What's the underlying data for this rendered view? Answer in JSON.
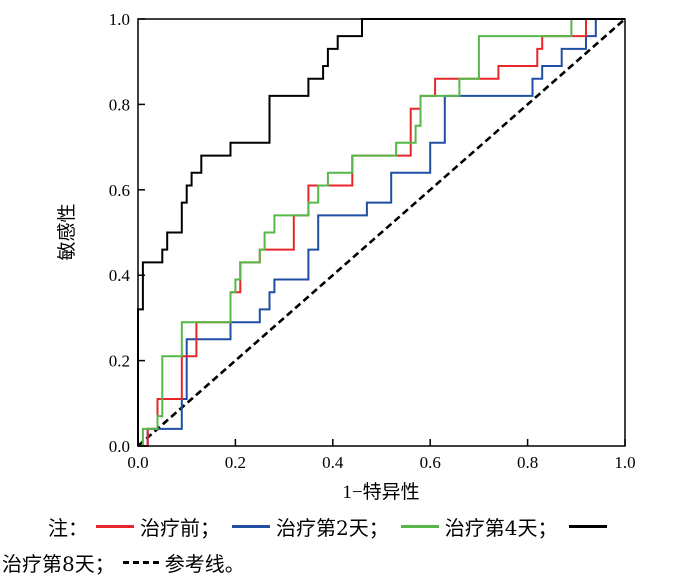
{
  "chart_data": {
    "type": "line",
    "xlabel": "1−特异性",
    "ylabel": "敏感性",
    "xlim": [
      0,
      1
    ],
    "ylim": [
      0,
      1
    ],
    "x_ticks": [
      "0.0",
      "0.2",
      "0.4",
      "0.6",
      "0.8",
      "1.0"
    ],
    "y_ticks": [
      "0.0",
      "0.2",
      "0.4",
      "0.6",
      "0.8",
      "1.0"
    ],
    "grid": false,
    "series": [
      {
        "name": "治疗前",
        "color": "#e8262a",
        "points": [
          [
            0,
            0
          ],
          [
            0.02,
            0
          ],
          [
            0.02,
            0.04
          ],
          [
            0.04,
            0.04
          ],
          [
            0.04,
            0.11
          ],
          [
            0.09,
            0.11
          ],
          [
            0.09,
            0.21
          ],
          [
            0.12,
            0.21
          ],
          [
            0.12,
            0.29
          ],
          [
            0.19,
            0.29
          ],
          [
            0.19,
            0.36
          ],
          [
            0.21,
            0.36
          ],
          [
            0.21,
            0.43
          ],
          [
            0.25,
            0.43
          ],
          [
            0.25,
            0.46
          ],
          [
            0.32,
            0.46
          ],
          [
            0.32,
            0.54
          ],
          [
            0.35,
            0.54
          ],
          [
            0.35,
            0.61
          ],
          [
            0.44,
            0.61
          ],
          [
            0.44,
            0.68
          ],
          [
            0.56,
            0.68
          ],
          [
            0.56,
            0.79
          ],
          [
            0.58,
            0.79
          ],
          [
            0.58,
            0.82
          ],
          [
            0.61,
            0.82
          ],
          [
            0.61,
            0.86
          ],
          [
            0.74,
            0.86
          ],
          [
            0.74,
            0.89
          ],
          [
            0.82,
            0.89
          ],
          [
            0.82,
            0.93
          ],
          [
            0.83,
            0.93
          ],
          [
            0.83,
            0.96
          ],
          [
            0.92,
            0.96
          ],
          [
            0.92,
            1.0
          ],
          [
            1.0,
            1.0
          ]
        ]
      },
      {
        "name": "治疗第2天",
        "color": "#1f4ea3",
        "points": [
          [
            0,
            0
          ],
          [
            0.02,
            0
          ],
          [
            0.02,
            0.04
          ],
          [
            0.09,
            0.04
          ],
          [
            0.09,
            0.11
          ],
          [
            0.1,
            0.11
          ],
          [
            0.1,
            0.25
          ],
          [
            0.19,
            0.25
          ],
          [
            0.19,
            0.29
          ],
          [
            0.25,
            0.29
          ],
          [
            0.25,
            0.32
          ],
          [
            0.27,
            0.32
          ],
          [
            0.27,
            0.36
          ],
          [
            0.28,
            0.36
          ],
          [
            0.28,
            0.39
          ],
          [
            0.35,
            0.39
          ],
          [
            0.35,
            0.46
          ],
          [
            0.37,
            0.46
          ],
          [
            0.37,
            0.54
          ],
          [
            0.47,
            0.54
          ],
          [
            0.47,
            0.57
          ],
          [
            0.52,
            0.57
          ],
          [
            0.52,
            0.64
          ],
          [
            0.6,
            0.64
          ],
          [
            0.6,
            0.71
          ],
          [
            0.63,
            0.71
          ],
          [
            0.63,
            0.82
          ],
          [
            0.81,
            0.82
          ],
          [
            0.81,
            0.86
          ],
          [
            0.83,
            0.86
          ],
          [
            0.83,
            0.89
          ],
          [
            0.87,
            0.89
          ],
          [
            0.87,
            0.93
          ],
          [
            0.92,
            0.93
          ],
          [
            0.92,
            0.96
          ],
          [
            0.94,
            0.96
          ],
          [
            0.94,
            1.0
          ],
          [
            1.0,
            1.0
          ]
        ]
      },
      {
        "name": "治疗第4天",
        "color": "#56b848",
        "points": [
          [
            0,
            0
          ],
          [
            0.01,
            0
          ],
          [
            0.01,
            0.04
          ],
          [
            0.04,
            0.04
          ],
          [
            0.04,
            0.07
          ],
          [
            0.05,
            0.07
          ],
          [
            0.05,
            0.21
          ],
          [
            0.09,
            0.21
          ],
          [
            0.09,
            0.29
          ],
          [
            0.19,
            0.29
          ],
          [
            0.19,
            0.36
          ],
          [
            0.2,
            0.36
          ],
          [
            0.2,
            0.39
          ],
          [
            0.21,
            0.39
          ],
          [
            0.21,
            0.43
          ],
          [
            0.25,
            0.43
          ],
          [
            0.25,
            0.46
          ],
          [
            0.26,
            0.46
          ],
          [
            0.26,
            0.5
          ],
          [
            0.28,
            0.5
          ],
          [
            0.28,
            0.54
          ],
          [
            0.35,
            0.54
          ],
          [
            0.35,
            0.57
          ],
          [
            0.37,
            0.57
          ],
          [
            0.37,
            0.61
          ],
          [
            0.39,
            0.61
          ],
          [
            0.39,
            0.64
          ],
          [
            0.44,
            0.64
          ],
          [
            0.44,
            0.68
          ],
          [
            0.53,
            0.68
          ],
          [
            0.53,
            0.71
          ],
          [
            0.57,
            0.71
          ],
          [
            0.57,
            0.75
          ],
          [
            0.58,
            0.75
          ],
          [
            0.58,
            0.82
          ],
          [
            0.66,
            0.82
          ],
          [
            0.66,
            0.86
          ],
          [
            0.7,
            0.86
          ],
          [
            0.7,
            0.96
          ],
          [
            0.89,
            0.96
          ],
          [
            0.89,
            1.0
          ],
          [
            1.0,
            1.0
          ]
        ]
      },
      {
        "name": "治疗第8天",
        "color": "#000000",
        "points": [
          [
            0,
            0
          ],
          [
            0,
            0.32
          ],
          [
            0.01,
            0.32
          ],
          [
            0.01,
            0.43
          ],
          [
            0.05,
            0.43
          ],
          [
            0.05,
            0.46
          ],
          [
            0.06,
            0.46
          ],
          [
            0.06,
            0.5
          ],
          [
            0.09,
            0.5
          ],
          [
            0.09,
            0.57
          ],
          [
            0.1,
            0.57
          ],
          [
            0.1,
            0.61
          ],
          [
            0.11,
            0.61
          ],
          [
            0.11,
            0.64
          ],
          [
            0.13,
            0.64
          ],
          [
            0.13,
            0.68
          ],
          [
            0.19,
            0.68
          ],
          [
            0.19,
            0.71
          ],
          [
            0.27,
            0.71
          ],
          [
            0.27,
            0.82
          ],
          [
            0.35,
            0.82
          ],
          [
            0.35,
            0.86
          ],
          [
            0.38,
            0.86
          ],
          [
            0.38,
            0.89
          ],
          [
            0.39,
            0.89
          ],
          [
            0.39,
            0.93
          ],
          [
            0.41,
            0.93
          ],
          [
            0.41,
            0.96
          ],
          [
            0.46,
            0.96
          ],
          [
            0.46,
            1.0
          ],
          [
            1.0,
            1.0
          ]
        ]
      },
      {
        "name": "参考线",
        "color": "#000000",
        "dashed": true,
        "points": [
          [
            0,
            0
          ],
          [
            1,
            1
          ]
        ]
      }
    ]
  },
  "legend": {
    "prefix": "注：",
    "items": [
      "治疗前；",
      "治疗第2天；",
      "治疗第4天；",
      "治疗第8天；",
      "参考线。"
    ]
  }
}
